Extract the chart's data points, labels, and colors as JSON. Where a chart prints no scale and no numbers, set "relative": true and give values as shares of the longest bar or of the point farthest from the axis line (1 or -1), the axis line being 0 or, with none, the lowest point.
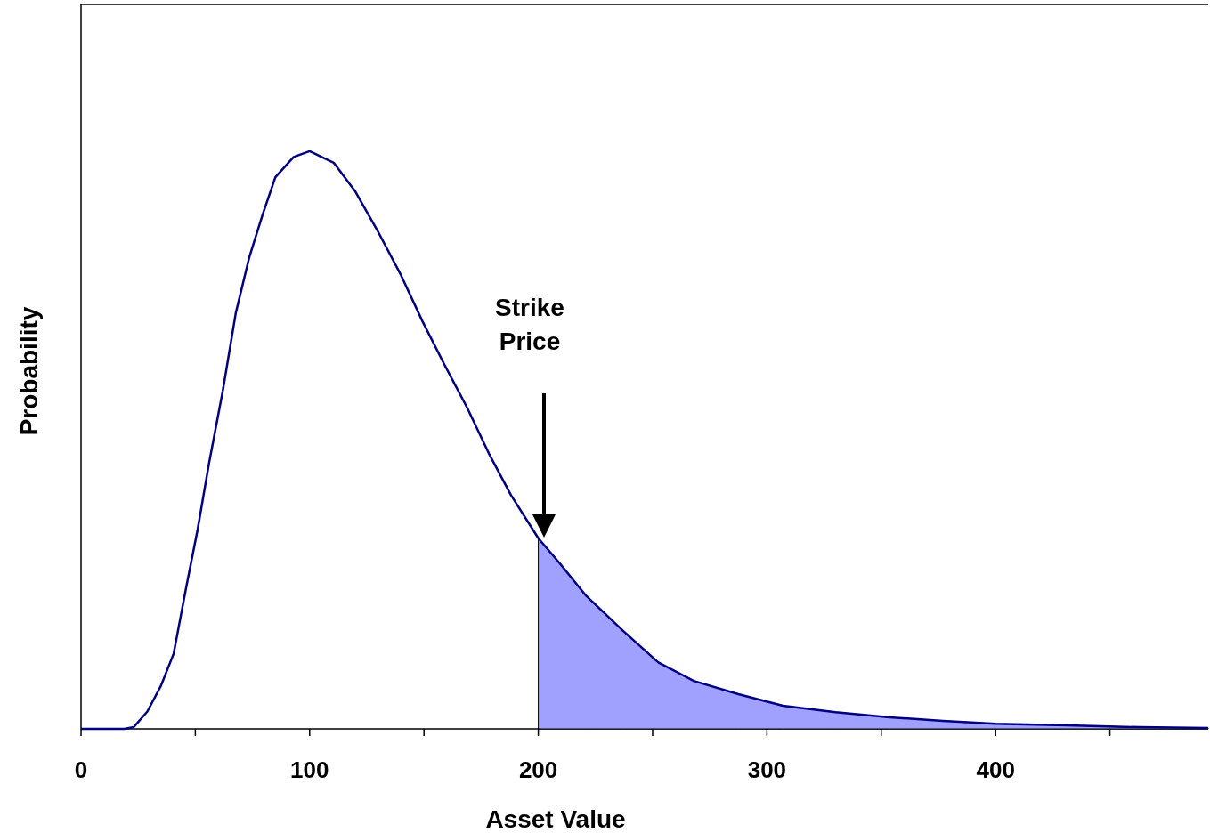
{
  "chart_data": {
    "type": "line",
    "relative": true,
    "xlabel": "Asset Value",
    "ylabel": "Probability",
    "xlim": [
      0,
      493
    ],
    "xticks": [
      0,
      {
        "value": 50,
        "label": null
      },
      100,
      {
        "value": 150,
        "label": null
      },
      200,
      {
        "value": 250,
        "label": null
      },
      300,
      {
        "value": 350,
        "label": null
      },
      400,
      {
        "value": 450,
        "label": null
      }
    ],
    "line_style": "solid",
    "annotations": [
      "Strike Price"
    ],
    "series": [
      {
        "type": "area",
        "color": "#a0a0ff",
        "x": [
          200,
          209.7,
          221,
          237,
          252.5,
          268,
          287.5,
          307,
          330,
          353.7,
          377,
          400,
          431.5,
          462.6,
          493
        ],
        "values": [
          0.33,
          0.285,
          0.23,
          0.17,
          0.115,
          0.083,
          0.06,
          0.04,
          0.029,
          0.02,
          0.014,
          0.009,
          0.006,
          0.003,
          0.0015
        ]
      },
      {
        "color": "#000080",
        "x": [
          0,
          19,
          23,
          29,
          35,
          40.5,
          46,
          51,
          56,
          62,
          67.7,
          73.5,
          79.4,
          85,
          93,
          100,
          110.5,
          120,
          130,
          140,
          149.4,
          159,
          169,
          178.6,
          188,
          200,
          209.7,
          221,
          237,
          252.5,
          268,
          287.5,
          307,
          330,
          353.7,
          377,
          400,
          431.5,
          462.6,
          493
        ],
        "values": [
          0,
          0,
          0.003,
          0.03,
          0.075,
          0.13,
          0.245,
          0.345,
          0.46,
          0.585,
          0.72,
          0.815,
          0.89,
          0.955,
          0.99,
          1,
          0.98,
          0.93,
          0.86,
          0.785,
          0.705,
          0.63,
          0.555,
          0.475,
          0.405,
          0.33,
          0.285,
          0.23,
          0.17,
          0.115,
          0.083,
          0.06,
          0.04,
          0.029,
          0.02,
          0.014,
          0.009,
          0.006,
          0.003,
          0.0015
        ]
      }
    ]
  }
}
